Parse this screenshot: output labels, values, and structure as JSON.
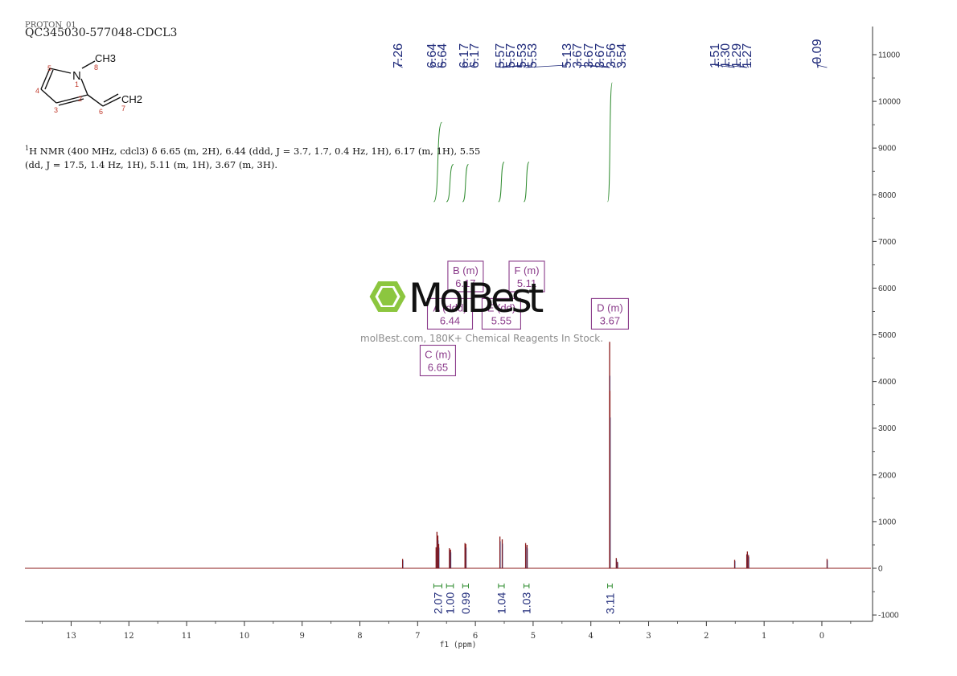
{
  "header": {
    "ghost_title": "PROTON_01",
    "sample_code": "QC345030-577048-CDCL3"
  },
  "molecule": {
    "labels": {
      "methyl": "CH3",
      "nitrogen": "N",
      "vinyl_end": "CH2",
      "n8": "8",
      "n1": "1",
      "n2": "2",
      "n3": "3",
      "n4": "4",
      "n5": "5",
      "n6": "6",
      "n7": "7"
    }
  },
  "nmr_summary": {
    "superscript": "1",
    "text": "H NMR (400 MHz, cdcl3) δ 6.65 (m, 2H), 6.44 (ddd, J = 3.7, 1.7, 0.4 Hz, 1H), 6.17 (m, 1H), 5.55 (dd, J = 17.5, 1.4 Hz, 1H), 5.11 (m, 1H), 3.67 (m, 3H)."
  },
  "watermark": {
    "brand": "MolBest",
    "tagline": "molBest.com, 180K+ Chemical Reagents In Stock."
  },
  "colors": {
    "spectrum": "#8b1a1a",
    "peak_labels": "#1f2a7a",
    "integral": "#2e8b2e",
    "multiplet_box": "#8a3a8a",
    "axis": "#333333",
    "logo": "#8cc63f"
  },
  "chart_data": {
    "type": "line",
    "xlabel": "f1 (ppm)",
    "x_range": [
      13.8,
      -0.85
    ],
    "x_reversed": true,
    "x_ticks": [
      13,
      12,
      11,
      10,
      9,
      8,
      7,
      6,
      5,
      4,
      3,
      2,
      1,
      0
    ],
    "y_range": [
      -1100,
      11700
    ],
    "y_ticks": [
      11000,
      10000,
      9000,
      8000,
      7000,
      6000,
      5000,
      4000,
      3000,
      2000,
      1000,
      0,
      -1000
    ],
    "y_tick_labels": [
      "11000",
      "10000",
      "9000",
      "8000",
      "7000",
      "6000",
      "5000",
      "4000",
      "3000",
      "2000",
      "1000",
      "0",
      "-1000"
    ],
    "peaks": [
      {
        "ppm": 7.26,
        "height": 200
      },
      {
        "ppm": 6.68,
        "height": 450
      },
      {
        "ppm": 6.665,
        "height": 780
      },
      {
        "ppm": 6.65,
        "height": 700
      },
      {
        "ppm": 6.635,
        "height": 520
      },
      {
        "ppm": 6.45,
        "height": 430
      },
      {
        "ppm": 6.43,
        "height": 400
      },
      {
        "ppm": 6.18,
        "height": 540
      },
      {
        "ppm": 6.165,
        "height": 520
      },
      {
        "ppm": 5.575,
        "height": 680
      },
      {
        "ppm": 5.535,
        "height": 620
      },
      {
        "ppm": 5.13,
        "height": 540
      },
      {
        "ppm": 5.105,
        "height": 500
      },
      {
        "ppm": 3.675,
        "height": 4850
      },
      {
        "ppm": 3.67,
        "height": 3800
      },
      {
        "ppm": 3.56,
        "height": 220
      },
      {
        "ppm": 3.54,
        "height": 140
      },
      {
        "ppm": 1.51,
        "height": 180
      },
      {
        "ppm": 1.3,
        "height": 300
      },
      {
        "ppm": 1.29,
        "height": 360
      },
      {
        "ppm": 1.27,
        "height": 280
      },
      {
        "ppm": -0.09,
        "height": 200
      }
    ],
    "peak_labels": [
      "7.26",
      "6.64",
      "6.64",
      "6.17",
      "6.17",
      "5.57",
      "5.57",
      "5.53",
      "5.53",
      "5.13",
      "3.67",
      "3.67",
      "3.67",
      "3.56",
      "3.54",
      "1.51",
      "1.30",
      "1.29",
      "1.27",
      "-0.09"
    ],
    "peak_label_targets": [
      7.26,
      6.64,
      6.64,
      6.17,
      6.17,
      5.57,
      5.57,
      5.53,
      5.53,
      5.13,
      3.67,
      3.67,
      3.67,
      3.56,
      3.54,
      1.51,
      1.3,
      1.29,
      1.27,
      -0.09
    ],
    "integrals": [
      {
        "from": 6.72,
        "to": 6.58,
        "value": "2.07",
        "curve_top": 9550,
        "curve_bottom": 7850
      },
      {
        "from": 6.5,
        "to": 6.38,
        "value": "1.00",
        "curve_top": 8650,
        "curve_bottom": 7850
      },
      {
        "from": 6.22,
        "to": 6.12,
        "value": "0.99",
        "curve_top": 8650,
        "curve_bottom": 7850
      },
      {
        "from": 5.6,
        "to": 5.5,
        "value": "1.04",
        "curve_top": 8700,
        "curve_bottom": 7850
      },
      {
        "from": 5.16,
        "to": 5.07,
        "value": "1.03",
        "curve_top": 8700,
        "curve_bottom": 7850
      },
      {
        "from": 3.71,
        "to": 3.63,
        "value": "3.11",
        "curve_top": 10400,
        "curve_bottom": 7850
      }
    ],
    "multiplets": [
      {
        "label": "B (m)",
        "value": "6.17",
        "ppm": 6.17,
        "box_y": 6250
      },
      {
        "label": "F (m)",
        "value": "5.11",
        "ppm": 5.11,
        "box_y": 6250
      },
      {
        "label": "A (ddd)",
        "value": "6.44",
        "ppm": 6.44,
        "box_y": 5450
      },
      {
        "label": "E (dd)",
        "value": "5.55",
        "ppm": 5.55,
        "box_y": 5450
      },
      {
        "label": "D (m)",
        "value": "3.67",
        "ppm": 3.67,
        "box_y": 5450
      },
      {
        "label": "C (m)",
        "value": "6.65",
        "ppm": 6.65,
        "box_y": 4450
      }
    ]
  }
}
